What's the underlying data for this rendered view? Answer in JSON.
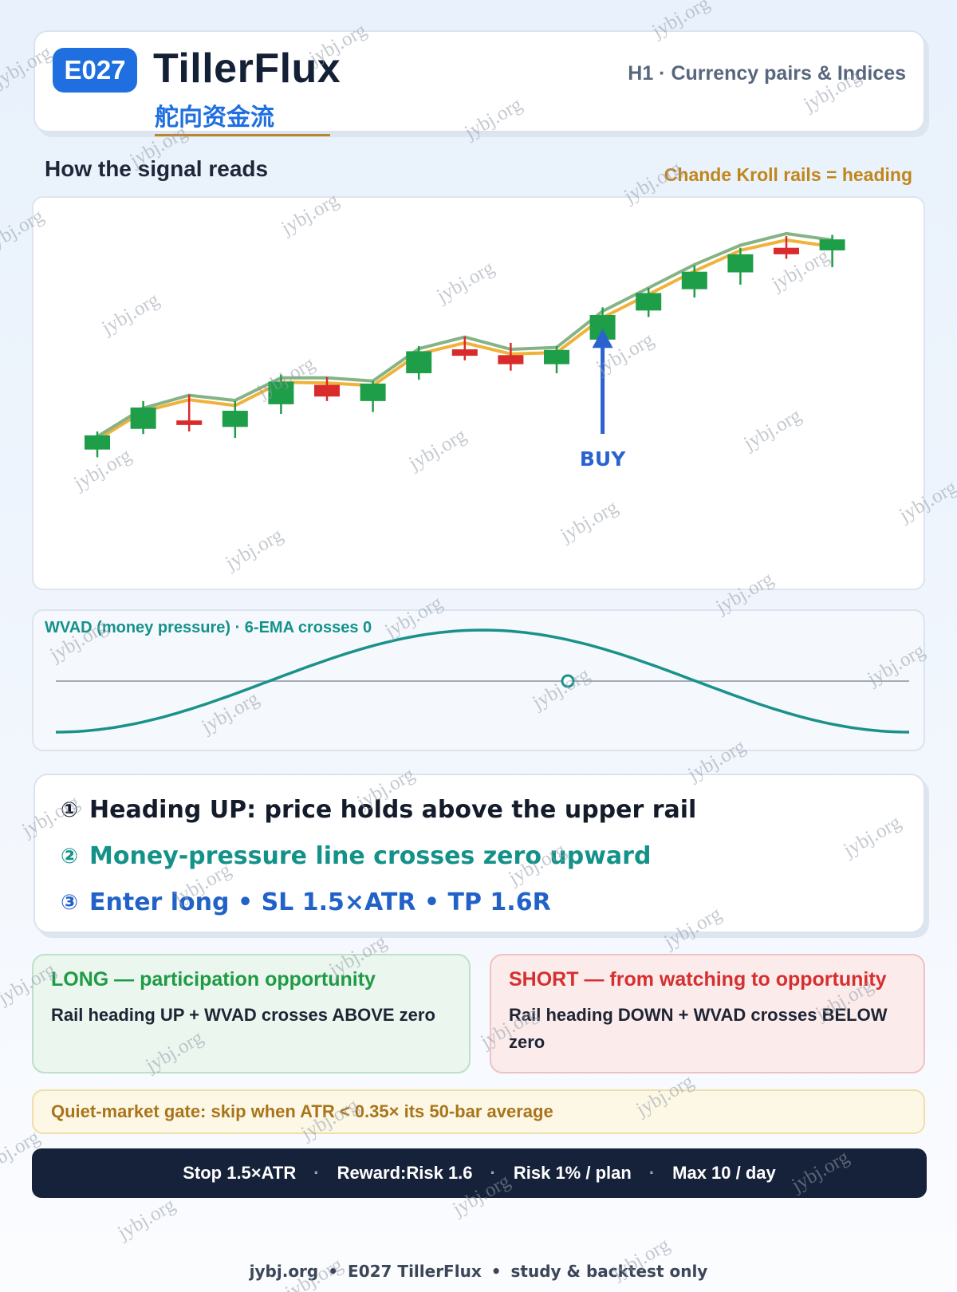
{
  "header": {
    "code": "E027",
    "title": "TillerFlux",
    "subtitle_cn": "舵向资金流",
    "meta": "H1 · Currency pairs & Indices"
  },
  "section": {
    "title": "How the signal reads",
    "rails_note": "Chande Kroll rails = heading"
  },
  "price_chart": {
    "buy_label": "BUY",
    "colors": {
      "up": "#1e9e48",
      "down": "#d92b2b",
      "rail_upper": "#86b386",
      "rail_lower": "#f0b23a",
      "buy": "#2a63cf"
    },
    "candles": [
      {
        "o": 103.0,
        "c": 105.2,
        "h": 105.8,
        "l": 101.8,
        "dir": "up"
      },
      {
        "o": 106.2,
        "c": 109.5,
        "h": 110.5,
        "l": 105.4,
        "dir": "up"
      },
      {
        "o": 107.5,
        "c": 106.8,
        "h": 111.5,
        "l": 105.8,
        "dir": "down"
      },
      {
        "o": 106.5,
        "c": 109.0,
        "h": 110.5,
        "l": 104.8,
        "dir": "up"
      },
      {
        "o": 110.0,
        "c": 113.5,
        "h": 114.6,
        "l": 108.5,
        "dir": "up"
      },
      {
        "o": 113.0,
        "c": 111.2,
        "h": 114.2,
        "l": 110.5,
        "dir": "down"
      },
      {
        "o": 110.5,
        "c": 113.2,
        "h": 113.6,
        "l": 108.8,
        "dir": "up"
      },
      {
        "o": 114.8,
        "c": 118.2,
        "h": 119.0,
        "l": 113.8,
        "dir": "up"
      },
      {
        "o": 118.5,
        "c": 117.5,
        "h": 120.5,
        "l": 116.8,
        "dir": "down"
      },
      {
        "o": 117.6,
        "c": 116.2,
        "h": 119.5,
        "l": 115.2,
        "dir": "down"
      },
      {
        "o": 116.2,
        "c": 118.4,
        "h": 119.0,
        "l": 114.8,
        "dir": "up"
      },
      {
        "o": 120.0,
        "c": 123.8,
        "h": 125.0,
        "l": 118.2,
        "dir": "up"
      },
      {
        "o": 124.5,
        "c": 127.2,
        "h": 128.0,
        "l": 123.5,
        "dir": "up"
      },
      {
        "o": 127.8,
        "c": 130.5,
        "h": 131.5,
        "l": 126.5,
        "dir": "up"
      },
      {
        "o": 130.4,
        "c": 133.2,
        "h": 134.2,
        "l": 128.5,
        "dir": "up"
      },
      {
        "o": 134.2,
        "c": 133.2,
        "h": 136.0,
        "l": 132.5,
        "dir": "down"
      },
      {
        "o": 133.8,
        "c": 135.5,
        "h": 136.2,
        "l": 131.2,
        "dir": "up"
      }
    ],
    "rail_upper": [
      105.0,
      109.4,
      111.4,
      110.6,
      114.1,
      114.1,
      113.6,
      118.6,
      120.4,
      118.5,
      118.8,
      124.4,
      128.0,
      131.6,
      134.6,
      136.4,
      135.4
    ],
    "rail_lower": [
      104.5,
      108.9,
      110.7,
      109.8,
      113.4,
      113.3,
      112.9,
      117.8,
      119.5,
      117.8,
      118.0,
      123.4,
      127.0,
      130.6,
      133.8,
      135.4,
      134.4
    ],
    "buy_index": 11
  },
  "wvad": {
    "label": "WVAD (money pressure) · 6-EMA  crosses 0",
    "colors": {
      "line": "#1a918a",
      "zero": "#8a949f",
      "marker": "#1a918a"
    },
    "cross_x_fraction": 0.6
  },
  "rules": [
    {
      "num": "①",
      "text": "Heading UP: price holds above the upper rail"
    },
    {
      "num": "②",
      "text": "Money-pressure line crosses zero upward"
    },
    {
      "num": "③",
      "text": "Enter long • SL 1.5×ATR • TP 1.6R"
    }
  ],
  "long": {
    "title": "LONG — participation opportunity",
    "body": "Rail heading UP + WVAD crosses ABOVE zero"
  },
  "short": {
    "title": "SHORT — from watching to opportunity",
    "body": "Rail heading DOWN + WVAD crosses BELOW zero"
  },
  "gate": "Quiet-market gate: skip when ATR < 0.35× its 50-bar average",
  "params": [
    "Stop 1.5×ATR",
    "Reward:Risk 1.6",
    "Risk 1% / plan",
    "Max 10 / day"
  ],
  "footer": {
    "site": "jybj.org",
    "item": "E027 TillerFlux",
    "note": "study & backtest only"
  },
  "watermark": "jybj.org"
}
